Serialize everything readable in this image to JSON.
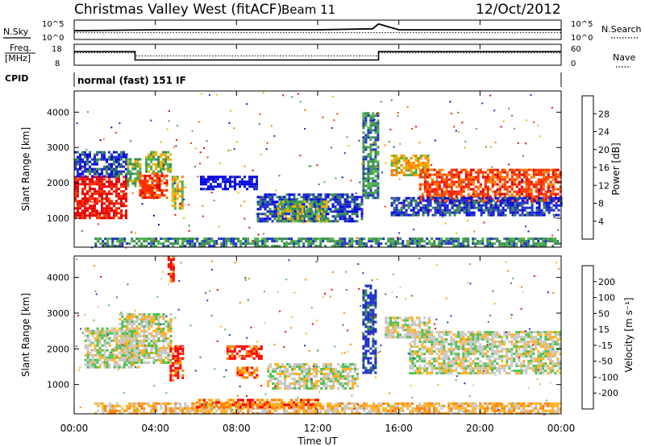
{
  "header": {
    "title": "Christmas Valley West (fitACF)",
    "beam": "Beam 11",
    "date": "12/Oct/2012",
    "cpid_label": "CPID",
    "cpid_value": "normal (fast) 151 IF"
  },
  "noise_panel": {
    "left_label": "N.Sky",
    "left_ticks": [
      "10^5",
      "10^0"
    ],
    "right_label": "N.Search",
    "right_ticks": [
      "10^5",
      "10^0"
    ]
  },
  "freq_panel": {
    "left_label_1": "Freq.",
    "left_label_2": "[MHz]",
    "left_ticks": [
      "18",
      "8"
    ],
    "right_label": "Nave",
    "right_ticks": [
      "60",
      "0"
    ]
  },
  "power_panel": {
    "ylabel": "Slant Range [km]",
    "yticks": [
      "4000",
      "3000",
      "2000",
      "1000"
    ],
    "colorbar_label": "Power [dB]",
    "colorbar_ticks": [
      "28",
      "24",
      "20",
      "16",
      "12",
      "8",
      "4"
    ]
  },
  "velocity_panel": {
    "ylabel": "Slant Range [km]",
    "yticks": [
      "4000",
      "3000",
      "2000",
      "1000"
    ],
    "colorbar_label": "Velocity [m s⁻¹]",
    "colorbar_ticks": [
      "200",
      "100",
      "50",
      "15",
      "-15",
      "-50",
      "-100",
      "-200"
    ]
  },
  "xaxis": {
    "label": "Time UT",
    "ticks": [
      "00:00",
      "04:00",
      "08:00",
      "12:00",
      "16:00",
      "20:00",
      "00:00"
    ]
  },
  "colors": {
    "power": [
      "#0000e6",
      "#2030c8",
      "#3a8a50",
      "#48b048",
      "#f0b000",
      "#ff7a00",
      "#ff3000",
      "#e60000"
    ],
    "velocity": [
      "#2030c8",
      "#3a8a50",
      "#50c050",
      "#c8c8c8",
      "#ffb020",
      "#ff8000",
      "#ff0000"
    ]
  },
  "chart_data": [
    {
      "type": "line",
      "title": "Noise",
      "series": [
        {
          "name": "N.Sky",
          "x": [
            0,
            4,
            8,
            12,
            14.7,
            15,
            16,
            20,
            24
          ],
          "y": [
            0.45,
            0.5,
            0.5,
            0.5,
            0.55,
            0.8,
            0.5,
            0.5,
            0.5
          ]
        },
        {
          "name": "N.Search",
          "x": [
            0,
            24
          ],
          "y": [
            0.35,
            0.35
          ]
        }
      ]
    },
    {
      "type": "line",
      "title": "Frequency",
      "series": [
        {
          "name": "Freq",
          "x": [
            0,
            3,
            3,
            15,
            15,
            24
          ],
          "y": [
            14.5,
            14.5,
            10.5,
            10.5,
            14.5,
            14.5
          ]
        },
        {
          "name": "Nave",
          "x": [
            0,
            3,
            3,
            15,
            15,
            24
          ],
          "y": [
            12,
            12,
            8,
            8,
            12,
            12
          ]
        }
      ]
    },
    {
      "type": "heatmap",
      "title": "Power",
      "xlabel": "Time UT",
      "ylabel": "Slant Range [km]",
      "xlim": [
        0,
        24
      ],
      "ylim": [
        180,
        4600
      ],
      "regions": [
        {
          "t0": 0,
          "t1": 2.6,
          "r0": 1000,
          "r1": 2200,
          "level": 7
        },
        {
          "t0": 0,
          "t1": 2.6,
          "r0": 2200,
          "r1": 2900,
          "level": 1
        },
        {
          "t0": 2.6,
          "t1": 3.3,
          "r0": 1900,
          "r1": 2700,
          "level": 3
        },
        {
          "t0": 3.2,
          "t1": 4.6,
          "r0": 1600,
          "r1": 2300,
          "level": 6
        },
        {
          "t0": 3.5,
          "t1": 4.8,
          "r0": 2300,
          "r1": 2900,
          "level": 3
        },
        {
          "t0": 4.8,
          "t1": 5.3,
          "r0": 1300,
          "r1": 2200,
          "level": 4
        },
        {
          "t0": 6.2,
          "t1": 9.0,
          "r0": 1800,
          "r1": 2200,
          "level": 0
        },
        {
          "t0": 9.0,
          "t1": 14.2,
          "r0": 900,
          "r1": 1700,
          "level": 1
        },
        {
          "t0": 10.0,
          "t1": 12.5,
          "r0": 900,
          "r1": 1500,
          "level": 3
        },
        {
          "t0": 14.2,
          "t1": 15.0,
          "r0": 1600,
          "r1": 4000,
          "level": 2
        },
        {
          "t0": 15.6,
          "t1": 17.5,
          "r0": 2200,
          "r1": 2800,
          "level": 4
        },
        {
          "t0": 17.0,
          "t1": 24,
          "r0": 1500,
          "r1": 2400,
          "level": 6
        },
        {
          "t0": 15.6,
          "t1": 24,
          "r0": 1100,
          "r1": 1600,
          "level": 1
        },
        {
          "t0": 1.0,
          "t1": 24,
          "r0": 200,
          "r1": 450,
          "level": 2
        }
      ]
    },
    {
      "type": "heatmap",
      "title": "Velocity",
      "xlabel": "Time UT",
      "ylabel": "Slant Range [km]",
      "xlim": [
        0,
        24
      ],
      "ylim": [
        180,
        4600
      ],
      "regions": [
        {
          "t0": 0.5,
          "t1": 3.2,
          "r0": 1500,
          "r1": 2600,
          "level": 3
        },
        {
          "t0": 2.2,
          "t1": 4.8,
          "r0": 1600,
          "r1": 3000,
          "level": 3
        },
        {
          "t0": 4.7,
          "t1": 5.3,
          "r0": 1100,
          "r1": 2100,
          "level": 6
        },
        {
          "t0": 4.6,
          "t1": 4.9,
          "r0": 3900,
          "r1": 4600,
          "level": 6
        },
        {
          "t0": 7.5,
          "t1": 9.2,
          "r0": 1700,
          "r1": 2100,
          "level": 6
        },
        {
          "t0": 8.0,
          "t1": 9.0,
          "r0": 1200,
          "r1": 1500,
          "level": 5
        },
        {
          "t0": 9.5,
          "t1": 14.0,
          "r0": 900,
          "r1": 1600,
          "level": 3
        },
        {
          "t0": 14.2,
          "t1": 14.9,
          "r0": 1300,
          "r1": 3800,
          "level": 0
        },
        {
          "t0": 15.3,
          "t1": 17.5,
          "r0": 2300,
          "r1": 2900,
          "level": 3
        },
        {
          "t0": 16.5,
          "t1": 24,
          "r0": 1300,
          "r1": 2500,
          "level": 3
        },
        {
          "t0": 1.0,
          "t1": 24,
          "r0": 200,
          "r1": 500,
          "level": 4
        },
        {
          "t0": 6.0,
          "t1": 12.0,
          "r0": 350,
          "r1": 600,
          "level": 5
        }
      ]
    }
  ]
}
